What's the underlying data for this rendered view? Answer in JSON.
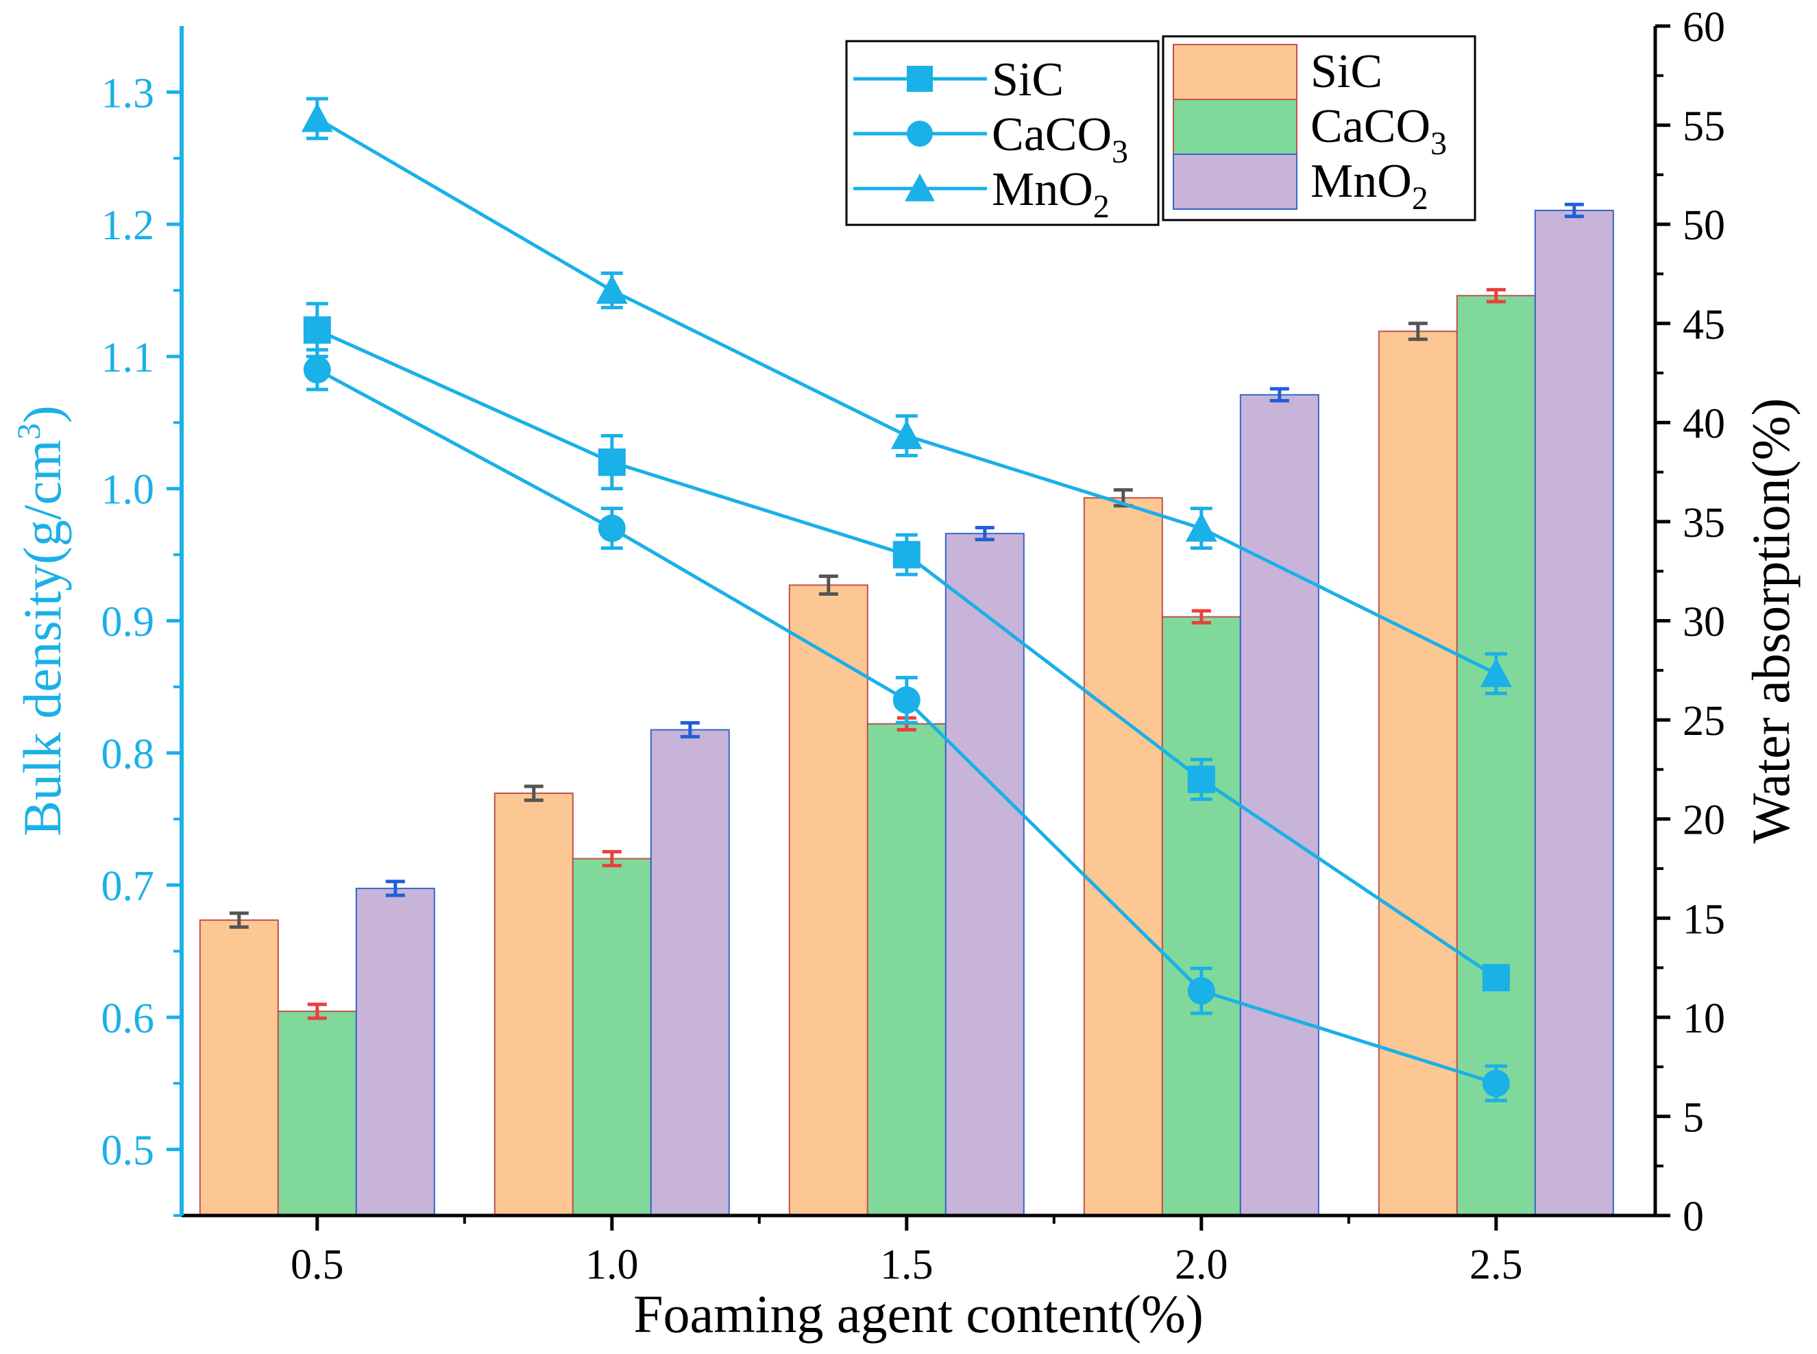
{
  "chart_data": {
    "type": "bar+line",
    "categories": [
      "0.5",
      "1.0",
      "1.5",
      "2.0",
      "2.5"
    ],
    "x_values": [
      0.5,
      1.0,
      1.5,
      2.0,
      2.5
    ],
    "xlabel": "Foaming agent content(%)",
    "ylabel_left": {
      "prefix": "Bulk density(g/cm",
      "sup": "3",
      "suffix": ")"
    },
    "ylabel_right": "Water absorption(%)",
    "left_axis": {
      "ylim": [
        0.45,
        1.35
      ],
      "ticks": [
        0.5,
        0.6,
        0.7,
        0.8,
        0.9,
        1.0,
        1.1,
        1.2,
        1.3
      ],
      "tick_labels": [
        "0.5",
        "0.6",
        "0.7",
        "0.8",
        "0.9",
        "1.0",
        "1.1",
        "1.2",
        "1.3"
      ],
      "color": "#1ab0e8"
    },
    "right_axis": {
      "ylim": [
        0,
        60
      ],
      "ticks": [
        0,
        5,
        10,
        15,
        20,
        25,
        30,
        35,
        40,
        45,
        50,
        55,
        60
      ],
      "tick_labels": [
        "0",
        "5",
        "10",
        "15",
        "20",
        "25",
        "30",
        "35",
        "40",
        "45",
        "50",
        "55",
        "60"
      ],
      "color": "#000000"
    },
    "bar_series": [
      {
        "name": "SiC",
        "fill": "#fdc794",
        "stroke": "#c0504d",
        "err_color": "#555555",
        "values": [
          14.9,
          21.3,
          31.8,
          36.2,
          44.6
        ],
        "errors": [
          0.35,
          0.35,
          0.45,
          0.4,
          0.4
        ]
      },
      {
        "name": "CaCO",
        "sub": "3",
        "fill": "#80d99a",
        "stroke": "#c0504d",
        "err_color": "#e8413c",
        "values": [
          10.3,
          18.0,
          24.8,
          30.2,
          46.4
        ],
        "errors": [
          0.35,
          0.35,
          0.3,
          0.3,
          0.3
        ]
      },
      {
        "name": "MnO",
        "sub": "2",
        "fill": "#c8b4d8",
        "stroke": "#3366cc",
        "err_color": "#1f5fd6",
        "values": [
          16.5,
          24.5,
          34.4,
          41.4,
          50.7
        ],
        "errors": [
          0.35,
          0.35,
          0.3,
          0.3,
          0.3
        ]
      }
    ],
    "line_series": [
      {
        "name": "SiC",
        "marker": "square",
        "values": [
          1.12,
          1.02,
          0.95,
          0.78,
          0.63
        ],
        "errors": [
          0.02,
          0.02,
          0.015,
          0.015,
          0.008
        ]
      },
      {
        "name": "CaCO",
        "sub": "3",
        "marker": "circle",
        "values": [
          1.09,
          0.97,
          0.84,
          0.62,
          0.55
        ],
        "errors": [
          0.015,
          0.015,
          0.017,
          0.017,
          0.013
        ]
      },
      {
        "name": "MnO",
        "sub": "2",
        "marker": "triangle",
        "values": [
          1.28,
          1.15,
          1.04,
          0.97,
          0.86
        ],
        "errors": [
          0.015,
          0.013,
          0.015,
          0.015,
          0.015
        ]
      }
    ],
    "line_color": "#1ab0e8",
    "legend_lines_placement": "top-center",
    "legend_bars_placement": "top-right"
  }
}
